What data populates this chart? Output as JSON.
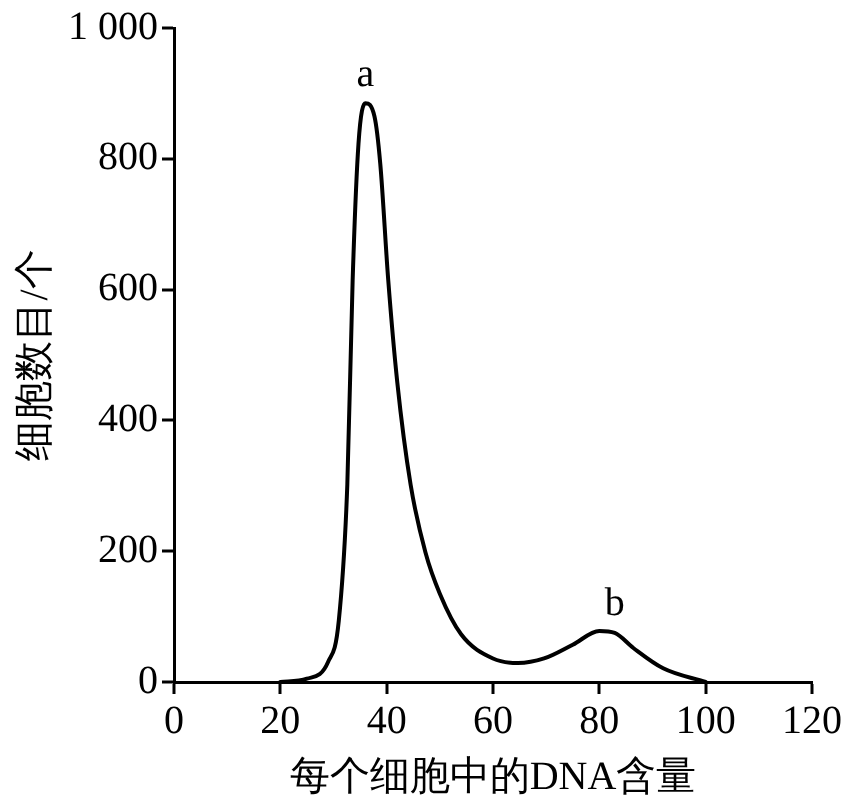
{
  "chart_data": {
    "type": "line",
    "xlabel": "每个细胞中的DNA含量",
    "ylabel": "细胞数目/个",
    "x": [
      20,
      25,
      29,
      31,
      32.6,
      33.6,
      34.7,
      36,
      37.7,
      38.8,
      40.3,
      42,
      44.5,
      47.3,
      50,
      54,
      60,
      64.7,
      69.6,
      75,
      80,
      82.9,
      86.4,
      92,
      100
    ],
    "series": [
      {
        "color": "#000000",
        "values": [
          0,
          5,
          31,
          94,
          302,
          614,
          823,
          885,
          865,
          792,
          614,
          458,
          302,
          198,
          135,
          73,
          36,
          29,
          36,
          57,
          78,
          75,
          52,
          21,
          0
        ]
      }
    ],
    "xlim": [
      0,
      120
    ],
    "xticks": [
      0,
      20,
      40,
      60,
      80,
      100,
      120
    ],
    "ylim": [
      0,
      1000
    ],
    "yticks": [
      0,
      200,
      400,
      600,
      800,
      {
        "value": 1000,
        "label": "1 000"
      }
    ],
    "annotations": [
      {
        "text": "a",
        "x": 36,
        "y": 885
      },
      {
        "text": "b",
        "x": 82.9,
        "y": 75
      }
    ],
    "grid": false,
    "legend": false,
    "marker": "none",
    "line_style": "solid"
  }
}
